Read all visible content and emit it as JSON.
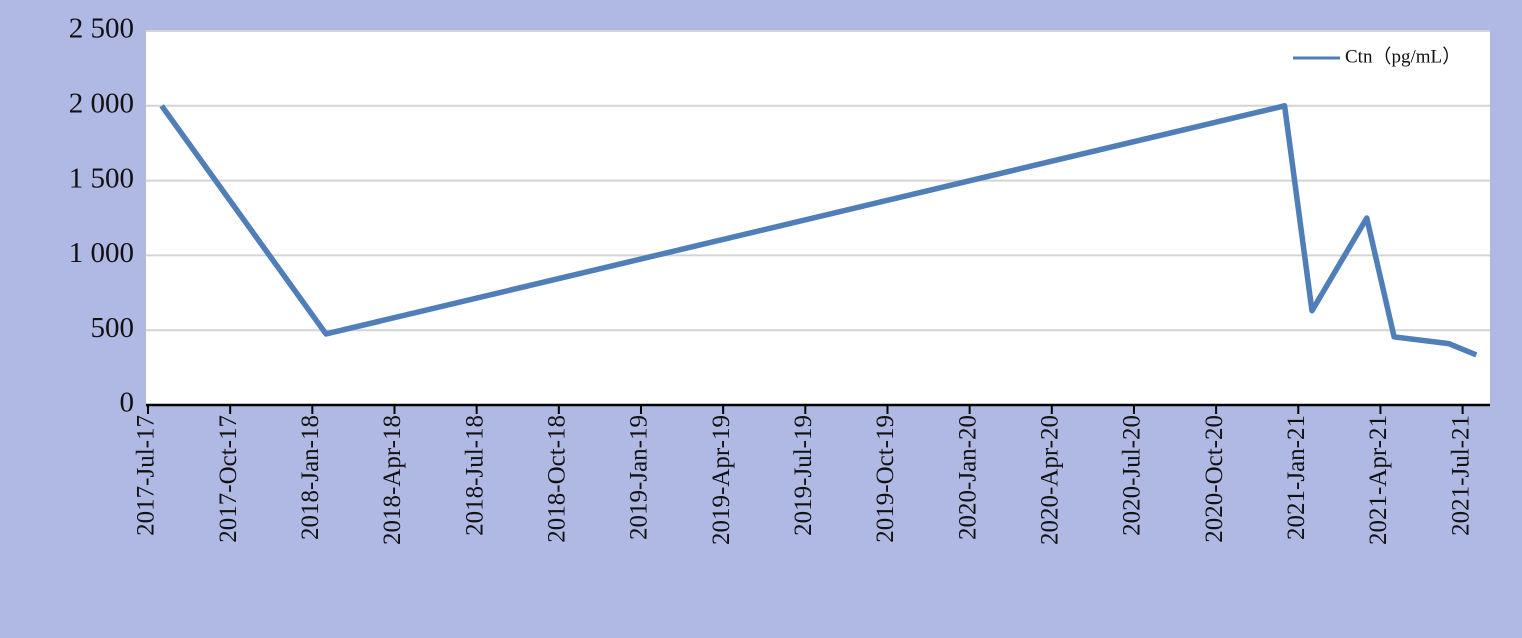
{
  "chart_data": {
    "type": "line",
    "x": [
      "2017-07",
      "2018-01",
      "2020-12",
      "2021-01",
      "2021-03",
      "2021-04",
      "2021-06",
      "2021-07"
    ],
    "series": [
      {
        "name": "Ctn（pg/mL）",
        "color": "#4f7eb8",
        "values": [
          2000,
          475,
          2000,
          630,
          1250,
          455,
          410,
          335
        ]
      }
    ],
    "xlim": [
      "2017-07",
      "2021-08"
    ],
    "xticks": [
      {
        "value": "2017-07",
        "label": "2017-Jul-17"
      },
      {
        "value": "2017-10",
        "label": "2017-Oct-17"
      },
      {
        "value": "2018-01",
        "label": "2018-Jan-18"
      },
      {
        "value": "2018-04",
        "label": "2018-Apr-18"
      },
      {
        "value": "2018-07",
        "label": "2018-Jul-18"
      },
      {
        "value": "2018-10",
        "label": "2018-Oct-18"
      },
      {
        "value": "2019-01",
        "label": "2019-Jan-19"
      },
      {
        "value": "2019-04",
        "label": "2019-Apr-19"
      },
      {
        "value": "2019-07",
        "label": "2019-Jul-19"
      },
      {
        "value": "2019-10",
        "label": "2019-Oct-19"
      },
      {
        "value": "2020-01",
        "label": "2020-Jan-20"
      },
      {
        "value": "2020-04",
        "label": "2020-Apr-20"
      },
      {
        "value": "2020-07",
        "label": "2020-Jul-20"
      },
      {
        "value": "2020-10",
        "label": "2020-Oct-20"
      },
      {
        "value": "2021-01",
        "label": "2021-Jan-21"
      },
      {
        "value": "2021-04",
        "label": "2021-Apr-21"
      },
      {
        "value": "2021-07",
        "label": "2021-Jul-21"
      }
    ],
    "ylim": [
      0,
      2500
    ],
    "yticks": [
      0,
      500,
      {
        "value": 1000,
        "label": "1 000"
      },
      {
        "value": 1500,
        "label": "1 500"
      },
      {
        "value": 2000,
        "label": "2 000"
      },
      {
        "value": 2500,
        "label": "2 500"
      }
    ],
    "grid": true,
    "legend": "upper right"
  }
}
